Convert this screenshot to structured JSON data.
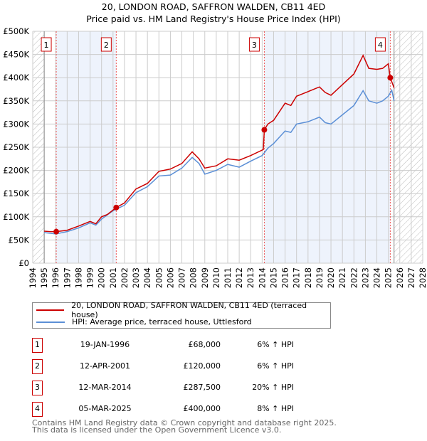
{
  "title": "20, LONDON ROAD, SAFFRON WALDEN, CB11 4ED",
  "subtitle": "Price paid vs. HM Land Registry's House Price Index (HPI)",
  "legend": [
    {
      "label": "20, LONDON ROAD, SAFFRON WALDEN, CB11 4ED (terraced house)",
      "color": "#cc0000"
    },
    {
      "label": "HPI: Average price, terraced house, Uttlesford",
      "color": "#5b8fd6"
    }
  ],
  "sales": [
    {
      "num": "1",
      "date": "19-JAN-1996",
      "price": "£68,000",
      "hpi": "6% ↑ HPI"
    },
    {
      "num": "2",
      "date": "12-APR-2001",
      "price": "£120,000",
      "hpi": "6% ↑ HPI"
    },
    {
      "num": "3",
      "date": "12-MAR-2014",
      "price": "£287,500",
      "hpi": "20% ↑ HPI"
    },
    {
      "num": "4",
      "date": "05-MAR-2025",
      "price": "£400,000",
      "hpi": "8% ↑ HPI"
    }
  ],
  "footer": [
    "Contains HM Land Registry data © Crown copyright and database right 2025.",
    "This data is licensed under the Open Government Licence v3.0."
  ],
  "chart_data": {
    "type": "line",
    "xlim": [
      1994,
      2028
    ],
    "ylim": [
      0,
      500000
    ],
    "x_ticks": [
      "1994",
      "1995",
      "1996",
      "1997",
      "1998",
      "1999",
      "2000",
      "2001",
      "2002",
      "2003",
      "2004",
      "2005",
      "2006",
      "2007",
      "2008",
      "2009",
      "2010",
      "2011",
      "2012",
      "2013",
      "2014",
      "2015",
      "2016",
      "2017",
      "2018",
      "2019",
      "2020",
      "2021",
      "2022",
      "2023",
      "2024",
      "2025",
      "2026",
      "2027",
      "2028"
    ],
    "y_ticks": [
      "£0",
      "£50K",
      "£100K",
      "£150K",
      "£200K",
      "£250K",
      "£300K",
      "£350K",
      "£400K",
      "£450K",
      "£500K"
    ],
    "sale_points": [
      {
        "x": 1996.05,
        "y": 68000,
        "label": "1"
      },
      {
        "x": 2001.28,
        "y": 120000,
        "label": "2"
      },
      {
        "x": 2014.19,
        "y": 287500,
        "label": "3"
      },
      {
        "x": 2025.17,
        "y": 400000,
        "label": "4"
      }
    ],
    "series": [
      {
        "name": "property",
        "color": "#cc0000",
        "x": [
          1995,
          1995.5,
          1996.05,
          1997,
          1998,
          1999,
          1999.5,
          2000,
          2000.5,
          2001.28,
          2002,
          2002.5,
          2003,
          2004,
          2004.5,
          2005,
          2006,
          2007,
          2007.9,
          2008.5,
          2009,
          2010,
          2011,
          2012,
          2013,
          2014.1,
          2014.19,
          2014.5,
          2015,
          2016,
          2016.5,
          2017,
          2017.5,
          2018,
          2019,
          2019.5,
          2020,
          2021,
          2022,
          2022.8,
          2023.3,
          2024,
          2024.5,
          2025,
          2025.17,
          2025.5
        ],
        "y": [
          69000,
          68000,
          68000,
          71000,
          80000,
          90000,
          85000,
          100000,
          105000,
          120000,
          130000,
          145000,
          160000,
          172000,
          185000,
          198000,
          203000,
          215000,
          240000,
          225000,
          205000,
          210000,
          225000,
          222000,
          232000,
          245000,
          287500,
          300000,
          308000,
          345000,
          340000,
          360000,
          365000,
          370000,
          380000,
          368000,
          362000,
          385000,
          408000,
          448000,
          420000,
          418000,
          420000,
          430000,
          400000,
          378000
        ]
      },
      {
        "name": "hpi",
        "color": "#5b8fd6",
        "x": [
          1995,
          1996,
          1997,
          1998,
          1999,
          1999.5,
          2000,
          2001,
          2002,
          2003,
          2004,
          2005,
          2006,
          2007,
          2007.9,
          2008.5,
          2009,
          2010,
          2011,
          2012,
          2013,
          2014,
          2014.5,
          2015,
          2016,
          2016.5,
          2017,
          2018,
          2019,
          2019.5,
          2020,
          2021,
          2022,
          2022.8,
          2023.3,
          2024,
          2024.5,
          2025,
          2025.3,
          2025.5
        ],
        "y": [
          66000,
          63000,
          68000,
          76000,
          87000,
          82000,
          95000,
          113000,
          125000,
          152000,
          165000,
          188000,
          190000,
          205000,
          228000,
          215000,
          192000,
          200000,
          213000,
          207000,
          220000,
          232000,
          248000,
          258000,
          285000,
          282000,
          300000,
          305000,
          315000,
          303000,
          300000,
          320000,
          340000,
          372000,
          350000,
          345000,
          350000,
          360000,
          373000,
          350000
        ]
      }
    ]
  }
}
